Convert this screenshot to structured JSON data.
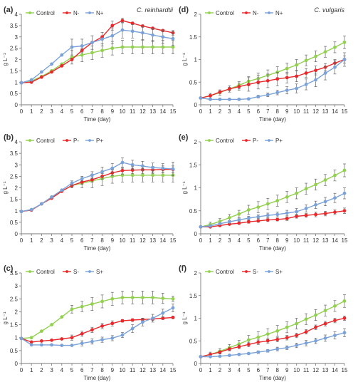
{
  "colors": {
    "control": "#92D050",
    "minus": "#E8282B",
    "plus": "#7BA2D8",
    "axis": "#777777",
    "grid": "#cccccc",
    "errorbar": "#666666"
  },
  "chart_data": [
    {
      "panel": "(a)",
      "title": "C. reinhardtii",
      "type": "line",
      "xlabel": "Time (day)",
      "ylabel": "g L⁻¹",
      "xlim": [
        0,
        15
      ],
      "ylim": [
        0,
        4
      ],
      "xticks": [
        0,
        1,
        2,
        3,
        4,
        5,
        6,
        7,
        8,
        9,
        10,
        11,
        12,
        13,
        14,
        15
      ],
      "yticks": [
        "0",
        "0.5",
        "1",
        "1.5",
        "2",
        "2.5",
        "3",
        "3.5",
        "4"
      ],
      "legend": "top-left",
      "x": [
        0,
        1,
        2,
        3,
        4,
        5,
        6,
        7,
        8,
        9,
        10,
        11,
        12,
        13,
        14,
        15
      ],
      "series": [
        {
          "name": "Control",
          "color": "control",
          "values": [
            0.97,
            1.05,
            1.25,
            1.5,
            1.8,
            2.1,
            2.2,
            2.3,
            2.4,
            2.5,
            2.55,
            2.55,
            2.55,
            2.55,
            2.55,
            2.55
          ],
          "err": [
            0,
            0,
            0,
            0,
            0,
            0.3,
            0.3,
            0.3,
            0.3,
            0.3,
            0.3,
            0.3,
            0.3,
            0.3,
            0.3,
            0.3
          ]
        },
        {
          "name": "N-",
          "color": "minus",
          "values": [
            0.97,
            1.0,
            1.22,
            1.45,
            1.72,
            2.0,
            2.4,
            2.75,
            3.0,
            3.5,
            3.72,
            3.6,
            3.48,
            3.38,
            3.28,
            3.18
          ],
          "err": [
            0,
            0,
            0,
            0,
            0,
            0,
            0,
            0,
            0,
            0.2,
            0.1,
            0.05,
            0.05,
            0.05,
            0.05,
            0.1
          ]
        },
        {
          "name": "N+",
          "color": "plus",
          "values": [
            0.97,
            1.1,
            1.45,
            1.8,
            2.2,
            2.55,
            2.6,
            2.75,
            2.9,
            3.05,
            3.3,
            3.25,
            3.18,
            3.08,
            3.0,
            2.92
          ],
          "err": [
            0,
            0,
            0,
            0,
            0,
            0.35,
            0.3,
            0.3,
            0.3,
            0.35,
            0.35,
            0.3,
            0.3,
            0.3,
            0.3,
            0.3
          ]
        }
      ]
    },
    {
      "panel": "(d)",
      "title": "C. vulgaris",
      "type": "line",
      "xlabel": "Time (day)",
      "ylabel": "g L⁻¹",
      "xlim": [
        0,
        15
      ],
      "ylim": [
        0,
        2
      ],
      "xticks": [
        0,
        1,
        2,
        3,
        4,
        5,
        6,
        7,
        8,
        9,
        10,
        11,
        12,
        13,
        14,
        15
      ],
      "yticks": [
        "0",
        "0.5",
        "1",
        "1.5",
        "2"
      ],
      "legend": "top-left",
      "x": [
        0,
        1,
        2,
        3,
        4,
        5,
        6,
        7,
        8,
        9,
        10,
        11,
        12,
        13,
        14,
        15
      ],
      "series": [
        {
          "name": "Control",
          "color": "control",
          "values": [
            0.15,
            0.2,
            0.27,
            0.35,
            0.43,
            0.52,
            0.58,
            0.65,
            0.72,
            0.8,
            0.88,
            0.98,
            1.07,
            1.17,
            1.27,
            1.38
          ],
          "err": [
            0,
            0.05,
            0.06,
            0.07,
            0.08,
            0.1,
            0.12,
            0.12,
            0.12,
            0.12,
            0.12,
            0.12,
            0.12,
            0.12,
            0.12,
            0.14
          ]
        },
        {
          "name": "N-",
          "color": "minus",
          "values": [
            0.15,
            0.2,
            0.28,
            0.35,
            0.4,
            0.45,
            0.5,
            0.53,
            0.57,
            0.6,
            0.63,
            0.7,
            0.76,
            0.83,
            0.92,
            1.0
          ],
          "err": [
            0,
            0.02,
            0.03,
            0.04,
            0.08,
            0.15,
            0.15,
            0.15,
            0.15,
            0.12,
            0.12,
            0.1,
            0.1,
            0.08,
            0.08,
            0.08
          ]
        },
        {
          "name": "N+",
          "color": "plus",
          "values": [
            0.15,
            0.12,
            0.12,
            0.12,
            0.12,
            0.13,
            0.18,
            0.22,
            0.27,
            0.32,
            0.36,
            0.45,
            0.55,
            0.7,
            0.83,
            1.0
          ],
          "err": [
            0,
            0.02,
            0.02,
            0.02,
            0.02,
            0.02,
            0.03,
            0.04,
            0.05,
            0.08,
            0.1,
            0.12,
            0.15,
            0.15,
            0.15,
            0.15
          ]
        }
      ]
    },
    {
      "panel": "(b)",
      "title": "",
      "type": "line",
      "xlabel": "Time (day)",
      "ylabel": "g L⁻¹",
      "xlim": [
        0,
        15
      ],
      "ylim": [
        0,
        4
      ],
      "xticks": [
        0,
        1,
        2,
        3,
        4,
        5,
        6,
        7,
        8,
        9,
        10,
        11,
        12,
        13,
        14,
        15
      ],
      "yticks": [
        "0",
        "0.5",
        "1",
        "1.5",
        "2",
        "2.5",
        "3",
        "3.5",
        "4"
      ],
      "legend": "top-left",
      "x": [
        0,
        1,
        2,
        3,
        4,
        5,
        6,
        7,
        8,
        9,
        10,
        11,
        12,
        13,
        14,
        15
      ],
      "series": [
        {
          "name": "Control",
          "color": "control",
          "values": [
            0.97,
            1.05,
            1.3,
            1.6,
            1.85,
            2.1,
            2.2,
            2.3,
            2.4,
            2.5,
            2.55,
            2.55,
            2.55,
            2.55,
            2.55,
            2.55
          ],
          "err": [
            0,
            0,
            0,
            0,
            0,
            0.1,
            0.2,
            0.3,
            0.3,
            0.3,
            0.3,
            0.3,
            0.3,
            0.3,
            0.3,
            0.3
          ]
        },
        {
          "name": "P-",
          "color": "minus",
          "values": [
            0.97,
            1.03,
            1.3,
            1.55,
            1.85,
            2.1,
            2.25,
            2.35,
            2.5,
            2.65,
            2.75,
            2.77,
            2.78,
            2.78,
            2.8,
            2.8
          ],
          "err": [
            0,
            0,
            0,
            0,
            0,
            0.1,
            0.1,
            0.1,
            0.12,
            0.12,
            0.15,
            0.15,
            0.15,
            0.15,
            0.15,
            0.15
          ]
        },
        {
          "name": "P+",
          "color": "plus",
          "values": [
            0.97,
            1.05,
            1.3,
            1.6,
            1.9,
            2.2,
            2.4,
            2.55,
            2.7,
            2.85,
            3.1,
            3.0,
            2.95,
            2.88,
            2.85,
            2.82
          ],
          "err": [
            0,
            0,
            0,
            0,
            0,
            0.1,
            0.1,
            0.15,
            0.2,
            0.2,
            0.2,
            0.2,
            0.2,
            0.2,
            0.2,
            0.3
          ]
        }
      ]
    },
    {
      "panel": "(e)",
      "title": "",
      "type": "line",
      "xlabel": "Time (day)",
      "ylabel": "g L⁻¹",
      "xlim": [
        0,
        15
      ],
      "ylim": [
        0,
        2
      ],
      "xticks": [
        0,
        1,
        2,
        3,
        4,
        5,
        6,
        7,
        8,
        9,
        10,
        11,
        12,
        13,
        14,
        15
      ],
      "yticks": [
        "0",
        "0.5",
        "1",
        "1.5",
        "2"
      ],
      "legend": "top-left",
      "x": [
        0,
        1,
        2,
        3,
        4,
        5,
        6,
        7,
        8,
        9,
        10,
        11,
        12,
        13,
        14,
        15
      ],
      "series": [
        {
          "name": "Control",
          "color": "control",
          "values": [
            0.15,
            0.2,
            0.27,
            0.35,
            0.43,
            0.52,
            0.58,
            0.65,
            0.72,
            0.8,
            0.88,
            0.98,
            1.07,
            1.17,
            1.27,
            1.38
          ],
          "err": [
            0,
            0.05,
            0.06,
            0.07,
            0.08,
            0.1,
            0.12,
            0.12,
            0.12,
            0.12,
            0.12,
            0.12,
            0.12,
            0.12,
            0.12,
            0.14
          ]
        },
        {
          "name": "P-",
          "color": "minus",
          "values": [
            0.15,
            0.15,
            0.18,
            0.21,
            0.23,
            0.26,
            0.28,
            0.3,
            0.31,
            0.33,
            0.38,
            0.4,
            0.42,
            0.44,
            0.47,
            0.5
          ],
          "err": [
            0,
            0.01,
            0.02,
            0.02,
            0.02,
            0.03,
            0.03,
            0.03,
            0.03,
            0.04,
            0.04,
            0.04,
            0.05,
            0.05,
            0.05,
            0.06
          ]
        },
        {
          "name": "P+",
          "color": "plus",
          "values": [
            0.15,
            0.17,
            0.22,
            0.26,
            0.3,
            0.34,
            0.37,
            0.4,
            0.42,
            0.45,
            0.48,
            0.55,
            0.63,
            0.7,
            0.78,
            0.88
          ],
          "err": [
            0,
            0.02,
            0.02,
            0.03,
            0.03,
            0.04,
            0.04,
            0.05,
            0.05,
            0.06,
            0.07,
            0.08,
            0.08,
            0.09,
            0.1,
            0.12
          ]
        }
      ]
    },
    {
      "panel": "(c)",
      "title": "",
      "type": "line",
      "xlabel": "Time (day)",
      "ylabel": "g L⁻¹",
      "xlim": [
        0,
        15
      ],
      "ylim": [
        0,
        3.5
      ],
      "xticks": [
        0,
        1,
        2,
        3,
        4,
        5,
        6,
        7,
        8,
        9,
        10,
        11,
        12,
        13,
        14,
        15
      ],
      "yticks": [
        "0",
        "0.5",
        "1",
        "1.5",
        "2",
        "2.5",
        "3",
        "3.5"
      ],
      "legend": "top-left",
      "x": [
        0,
        1,
        2,
        3,
        4,
        5,
        6,
        7,
        8,
        9,
        10,
        11,
        12,
        13,
        14,
        15
      ],
      "series": [
        {
          "name": "Control",
          "color": "control",
          "values": [
            0.97,
            1.0,
            1.25,
            1.5,
            1.8,
            2.1,
            2.2,
            2.3,
            2.4,
            2.5,
            2.55,
            2.55,
            2.55,
            2.55,
            2.52,
            2.5
          ],
          "err": [
            0,
            0,
            0,
            0,
            0,
            0.15,
            0.2,
            0.25,
            0.25,
            0.25,
            0.25,
            0.25,
            0.25,
            0.25,
            0.2,
            0.1
          ]
        },
        {
          "name": "S-",
          "color": "minus",
          "values": [
            0.97,
            0.83,
            0.87,
            0.9,
            0.95,
            1.0,
            1.15,
            1.3,
            1.45,
            1.55,
            1.65,
            1.68,
            1.7,
            1.72,
            1.75,
            1.78
          ],
          "err": [
            0,
            0,
            0,
            0,
            0,
            0.1,
            0.1,
            0.1,
            0.1,
            0.1,
            0.05,
            0.05,
            0.05,
            0.05,
            0.05,
            0.05
          ]
        },
        {
          "name": "S+",
          "color": "plus",
          "values": [
            0.97,
            0.72,
            0.72,
            0.72,
            0.7,
            0.7,
            0.78,
            0.85,
            0.92,
            0.98,
            1.1,
            1.35,
            1.6,
            1.75,
            1.95,
            2.15
          ],
          "err": [
            0,
            0,
            0,
            0,
            0,
            0,
            0.1,
            0.1,
            0.1,
            0.1,
            0.1,
            0.15,
            0.15,
            0.15,
            0.15,
            0.15
          ]
        }
      ]
    },
    {
      "panel": "(f)",
      "title": "",
      "type": "line",
      "xlabel": "Time (day)",
      "ylabel": "g L⁻¹",
      "xlim": [
        0,
        15
      ],
      "ylim": [
        0,
        2
      ],
      "xticks": [
        0,
        1,
        2,
        3,
        4,
        5,
        6,
        7,
        8,
        9,
        10,
        11,
        12,
        13,
        14,
        15
      ],
      "yticks": [
        "0",
        "0.5",
        "1",
        "1.5",
        "2"
      ],
      "legend": "top-left",
      "x": [
        0,
        1,
        2,
        3,
        4,
        5,
        6,
        7,
        8,
        9,
        10,
        11,
        12,
        13,
        14,
        15
      ],
      "series": [
        {
          "name": "Control",
          "color": "control",
          "values": [
            0.15,
            0.2,
            0.27,
            0.35,
            0.43,
            0.52,
            0.58,
            0.65,
            0.72,
            0.8,
            0.88,
            0.98,
            1.07,
            1.17,
            1.27,
            1.38
          ],
          "err": [
            0,
            0.05,
            0.06,
            0.07,
            0.08,
            0.1,
            0.12,
            0.12,
            0.12,
            0.12,
            0.12,
            0.12,
            0.12,
            0.12,
            0.12,
            0.14
          ]
        },
        {
          "name": "S-",
          "color": "minus",
          "values": [
            0.15,
            0.2,
            0.25,
            0.32,
            0.37,
            0.42,
            0.47,
            0.5,
            0.53,
            0.57,
            0.62,
            0.7,
            0.8,
            0.88,
            0.95,
            1.0
          ],
          "err": [
            0,
            0.02,
            0.03,
            0.03,
            0.04,
            0.05,
            0.05,
            0.05,
            0.05,
            0.05,
            0.05,
            0.05,
            0.05,
            0.05,
            0.05,
            0.05
          ]
        },
        {
          "name": "S+",
          "color": "plus",
          "values": [
            0.15,
            0.15,
            0.16,
            0.18,
            0.2,
            0.22,
            0.25,
            0.28,
            0.32,
            0.35,
            0.4,
            0.45,
            0.5,
            0.56,
            0.62,
            0.68
          ],
          "err": [
            0,
            0.01,
            0.01,
            0.02,
            0.02,
            0.02,
            0.03,
            0.03,
            0.04,
            0.04,
            0.05,
            0.06,
            0.06,
            0.07,
            0.08,
            0.09
          ]
        }
      ]
    }
  ]
}
